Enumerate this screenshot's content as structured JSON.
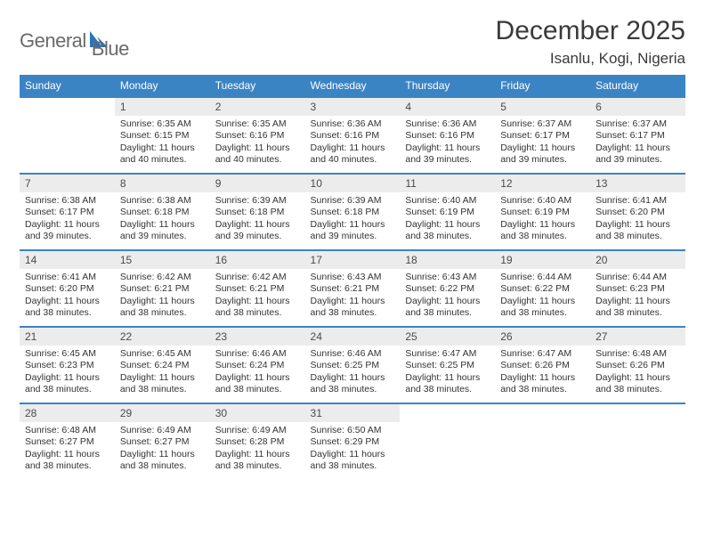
{
  "brand": {
    "part1": "General",
    "part2": "Blue"
  },
  "title": {
    "month": "December 2025",
    "location": "Isanlu, Kogi, Nigeria"
  },
  "colors": {
    "header_bg": "#3b84c4",
    "header_text": "#ffffff",
    "daynum_bg": "#ececec",
    "daynum_text": "#4a4a4a",
    "body_text": "#333333",
    "row_border": "#3b84c4",
    "brand_text": "#6a6a6a",
    "brand_accent": "#2a74b8",
    "title_text": "#3a3a3a",
    "page_bg": "#ffffff"
  },
  "day_headers": [
    "Sunday",
    "Monday",
    "Tuesday",
    "Wednesday",
    "Thursday",
    "Friday",
    "Saturday"
  ],
  "weeks": [
    [
      {
        "n": "",
        "sr": "",
        "ss": "",
        "dl": ""
      },
      {
        "n": "1",
        "sr": "Sunrise: 6:35 AM",
        "ss": "Sunset: 6:15 PM",
        "dl": "Daylight: 11 hours and 40 minutes."
      },
      {
        "n": "2",
        "sr": "Sunrise: 6:35 AM",
        "ss": "Sunset: 6:16 PM",
        "dl": "Daylight: 11 hours and 40 minutes."
      },
      {
        "n": "3",
        "sr": "Sunrise: 6:36 AM",
        "ss": "Sunset: 6:16 PM",
        "dl": "Daylight: 11 hours and 40 minutes."
      },
      {
        "n": "4",
        "sr": "Sunrise: 6:36 AM",
        "ss": "Sunset: 6:16 PM",
        "dl": "Daylight: 11 hours and 39 minutes."
      },
      {
        "n": "5",
        "sr": "Sunrise: 6:37 AM",
        "ss": "Sunset: 6:17 PM",
        "dl": "Daylight: 11 hours and 39 minutes."
      },
      {
        "n": "6",
        "sr": "Sunrise: 6:37 AM",
        "ss": "Sunset: 6:17 PM",
        "dl": "Daylight: 11 hours and 39 minutes."
      }
    ],
    [
      {
        "n": "7",
        "sr": "Sunrise: 6:38 AM",
        "ss": "Sunset: 6:17 PM",
        "dl": "Daylight: 11 hours and 39 minutes."
      },
      {
        "n": "8",
        "sr": "Sunrise: 6:38 AM",
        "ss": "Sunset: 6:18 PM",
        "dl": "Daylight: 11 hours and 39 minutes."
      },
      {
        "n": "9",
        "sr": "Sunrise: 6:39 AM",
        "ss": "Sunset: 6:18 PM",
        "dl": "Daylight: 11 hours and 39 minutes."
      },
      {
        "n": "10",
        "sr": "Sunrise: 6:39 AM",
        "ss": "Sunset: 6:18 PM",
        "dl": "Daylight: 11 hours and 39 minutes."
      },
      {
        "n": "11",
        "sr": "Sunrise: 6:40 AM",
        "ss": "Sunset: 6:19 PM",
        "dl": "Daylight: 11 hours and 38 minutes."
      },
      {
        "n": "12",
        "sr": "Sunrise: 6:40 AM",
        "ss": "Sunset: 6:19 PM",
        "dl": "Daylight: 11 hours and 38 minutes."
      },
      {
        "n": "13",
        "sr": "Sunrise: 6:41 AM",
        "ss": "Sunset: 6:20 PM",
        "dl": "Daylight: 11 hours and 38 minutes."
      }
    ],
    [
      {
        "n": "14",
        "sr": "Sunrise: 6:41 AM",
        "ss": "Sunset: 6:20 PM",
        "dl": "Daylight: 11 hours and 38 minutes."
      },
      {
        "n": "15",
        "sr": "Sunrise: 6:42 AM",
        "ss": "Sunset: 6:21 PM",
        "dl": "Daylight: 11 hours and 38 minutes."
      },
      {
        "n": "16",
        "sr": "Sunrise: 6:42 AM",
        "ss": "Sunset: 6:21 PM",
        "dl": "Daylight: 11 hours and 38 minutes."
      },
      {
        "n": "17",
        "sr": "Sunrise: 6:43 AM",
        "ss": "Sunset: 6:21 PM",
        "dl": "Daylight: 11 hours and 38 minutes."
      },
      {
        "n": "18",
        "sr": "Sunrise: 6:43 AM",
        "ss": "Sunset: 6:22 PM",
        "dl": "Daylight: 11 hours and 38 minutes."
      },
      {
        "n": "19",
        "sr": "Sunrise: 6:44 AM",
        "ss": "Sunset: 6:22 PM",
        "dl": "Daylight: 11 hours and 38 minutes."
      },
      {
        "n": "20",
        "sr": "Sunrise: 6:44 AM",
        "ss": "Sunset: 6:23 PM",
        "dl": "Daylight: 11 hours and 38 minutes."
      }
    ],
    [
      {
        "n": "21",
        "sr": "Sunrise: 6:45 AM",
        "ss": "Sunset: 6:23 PM",
        "dl": "Daylight: 11 hours and 38 minutes."
      },
      {
        "n": "22",
        "sr": "Sunrise: 6:45 AM",
        "ss": "Sunset: 6:24 PM",
        "dl": "Daylight: 11 hours and 38 minutes."
      },
      {
        "n": "23",
        "sr": "Sunrise: 6:46 AM",
        "ss": "Sunset: 6:24 PM",
        "dl": "Daylight: 11 hours and 38 minutes."
      },
      {
        "n": "24",
        "sr": "Sunrise: 6:46 AM",
        "ss": "Sunset: 6:25 PM",
        "dl": "Daylight: 11 hours and 38 minutes."
      },
      {
        "n": "25",
        "sr": "Sunrise: 6:47 AM",
        "ss": "Sunset: 6:25 PM",
        "dl": "Daylight: 11 hours and 38 minutes."
      },
      {
        "n": "26",
        "sr": "Sunrise: 6:47 AM",
        "ss": "Sunset: 6:26 PM",
        "dl": "Daylight: 11 hours and 38 minutes."
      },
      {
        "n": "27",
        "sr": "Sunrise: 6:48 AM",
        "ss": "Sunset: 6:26 PM",
        "dl": "Daylight: 11 hours and 38 minutes."
      }
    ],
    [
      {
        "n": "28",
        "sr": "Sunrise: 6:48 AM",
        "ss": "Sunset: 6:27 PM",
        "dl": "Daylight: 11 hours and 38 minutes."
      },
      {
        "n": "29",
        "sr": "Sunrise: 6:49 AM",
        "ss": "Sunset: 6:27 PM",
        "dl": "Daylight: 11 hours and 38 minutes."
      },
      {
        "n": "30",
        "sr": "Sunrise: 6:49 AM",
        "ss": "Sunset: 6:28 PM",
        "dl": "Daylight: 11 hours and 38 minutes."
      },
      {
        "n": "31",
        "sr": "Sunrise: 6:50 AM",
        "ss": "Sunset: 6:29 PM",
        "dl": "Daylight: 11 hours and 38 minutes."
      },
      {
        "n": "",
        "sr": "",
        "ss": "",
        "dl": ""
      },
      {
        "n": "",
        "sr": "",
        "ss": "",
        "dl": ""
      },
      {
        "n": "",
        "sr": "",
        "ss": "",
        "dl": ""
      }
    ]
  ]
}
